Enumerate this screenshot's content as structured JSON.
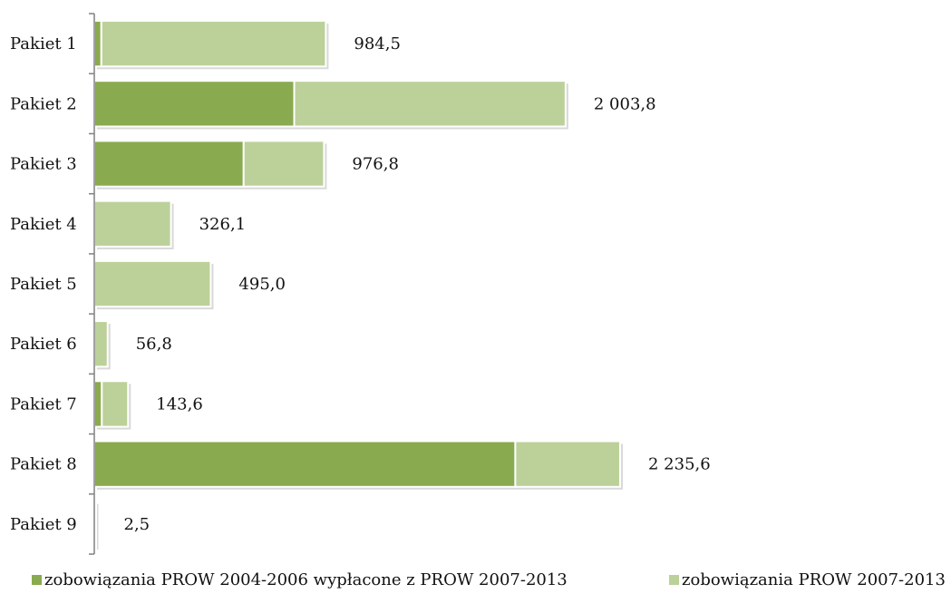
{
  "chart_data": {
    "type": "bar",
    "orientation": "horizontal",
    "stacked": true,
    "categories": [
      "Pakiet 1",
      "Pakiet 2",
      "Pakiet 3",
      "Pakiet 4",
      "Pakiet 5",
      "Pakiet 6",
      "Pakiet 7",
      "Pakiet 8",
      "Pakiet 9"
    ],
    "series": [
      {
        "name": "zobowiązania PROW 2004-2006 wypłacone z PROW 2007-2013",
        "color": "#8aaa4f",
        "values": [
          30,
          850,
          635,
          0,
          0,
          0,
          32,
          1790,
          0
        ]
      },
      {
        "name": "zobowiązania PROW 2007-2013",
        "color": "#bcd19a",
        "values": [
          954.5,
          1153.8,
          341.8,
          326.1,
          495.0,
          56.8,
          111.6,
          445.6,
          2.5
        ]
      }
    ],
    "totals": [
      "984,5",
      "2 003,8",
      "976,8",
      "326,1",
      "495,0",
      "56,8",
      "143,6",
      "2 235,6",
      "2,5"
    ],
    "xlim": [
      0,
      2235.6
    ],
    "grid": false,
    "legend_position": "bottom",
    "title": "",
    "xlabel": "",
    "ylabel": ""
  }
}
